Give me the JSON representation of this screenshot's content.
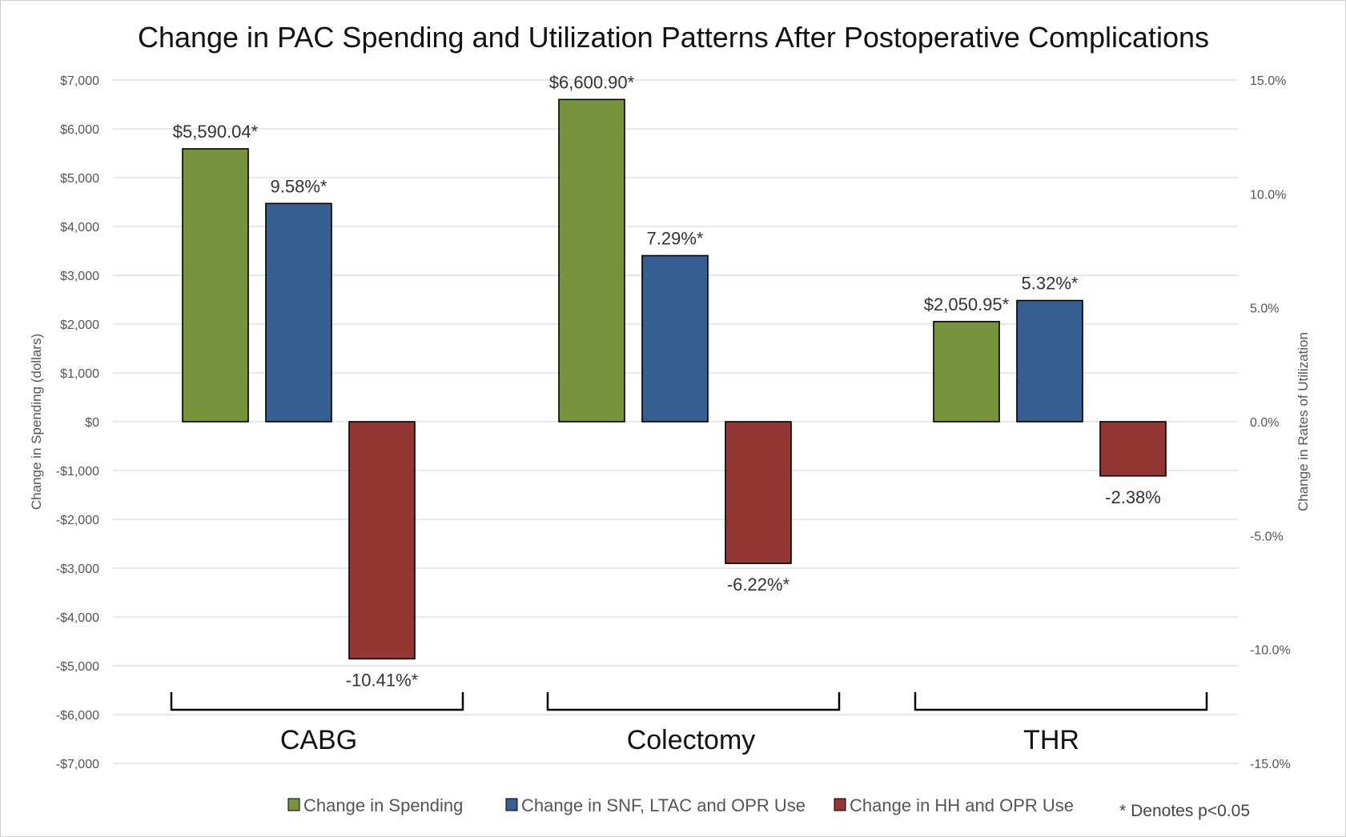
{
  "chart_data": {
    "type": "bar",
    "title": "Change in PAC Spending and Utilization Patterns After Postoperative Complications",
    "categories": [
      "CABG",
      "Colectomy",
      "THR"
    ],
    "y_left": {
      "label": "Change in Spending (dollars)",
      "range": [
        -7000,
        7000
      ],
      "ticks": [
        7000,
        6000,
        5000,
        4000,
        3000,
        2000,
        1000,
        0,
        -1000,
        -2000,
        -3000,
        -4000,
        -5000,
        -6000,
        -7000
      ],
      "tick_labels": [
        "$7,000",
        "$6,000",
        "$5,000",
        "$4,000",
        "$3,000",
        "$2,000",
        "$1,000",
        "$0",
        "-$1,000",
        "-$2,000",
        "-$3,000",
        "-$4,000",
        "-$5,000",
        "-$6,000",
        "-$7,000"
      ]
    },
    "y_right": {
      "label": "Change in Rates of Utilization",
      "range": [
        -15,
        15
      ],
      "ticks": [
        15,
        10,
        5,
        0,
        -5,
        -10,
        -15
      ],
      "tick_labels": [
        "15.0%",
        "10.0%",
        "5.0%",
        "0.0%",
        "-5.0%",
        "-10.0%",
        "-15.0%"
      ]
    },
    "series": [
      {
        "name": "Change in Spending",
        "axis": "left",
        "color": "#77933c",
        "values": [
          5590.04,
          6600.9,
          2050.95
        ],
        "labels": [
          "$5,590.04*",
          "$6,600.90*",
          "$2,050.95*"
        ]
      },
      {
        "name": "Change in SNF, LTAC and OPR Use",
        "axis": "right",
        "color": "#355f91",
        "values": [
          9.58,
          7.29,
          5.32
        ],
        "labels": [
          "9.58%*",
          "7.29%*",
          "5.32%*"
        ]
      },
      {
        "name": "Change in HH and OPR Use",
        "axis": "right",
        "color": "#943634",
        "values": [
          -10.41,
          -6.22,
          -2.38
        ],
        "labels": [
          "-10.41%*",
          "-6.22%*",
          "-2.38%"
        ]
      }
    ],
    "grid": true,
    "legend": "bottom",
    "footnote": "* Denotes p<0.05"
  }
}
